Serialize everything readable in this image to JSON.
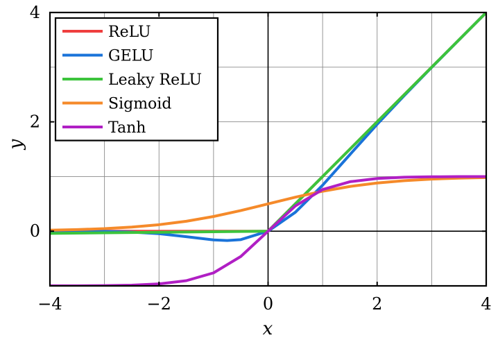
{
  "chart_data": {
    "type": "line",
    "title": "",
    "xlabel": "x",
    "ylabel": "y",
    "xlim": [
      -4,
      4
    ],
    "ylim": [
      -1,
      4
    ],
    "xticks": [
      -4,
      -2,
      0,
      2,
      4
    ],
    "yticks": [
      0,
      2,
      4
    ],
    "xtick_labels": [
      "−4",
      "−2",
      "0",
      "2",
      "4"
    ],
    "ytick_labels": [
      "0",
      "2",
      "4"
    ],
    "grid": true,
    "legend_position": "top-left",
    "series": [
      {
        "name": "ReLU",
        "color": "#ef3f3f",
        "x": [
          -4,
          -3.5,
          -3,
          -2.5,
          -2,
          -1.5,
          -1,
          -0.5,
          0,
          0.5,
          1,
          1.5,
          2,
          2.5,
          3,
          3.5,
          4
        ],
        "y": [
          0,
          0,
          0,
          0,
          0,
          0,
          0,
          0,
          0,
          0.5,
          1,
          1.5,
          2,
          2.5,
          3,
          3.5,
          4
        ]
      },
      {
        "name": "GELU",
        "color": "#1a73d9",
        "x": [
          -4,
          -3.5,
          -3,
          -2.5,
          -2,
          -1.5,
          -1,
          -0.75,
          -0.5,
          0,
          0.5,
          1,
          1.5,
          2,
          2.5,
          3,
          3.5,
          4
        ],
        "y": [
          0,
          -0.001,
          -0.004,
          -0.016,
          -0.045,
          -0.1,
          -0.159,
          -0.17,
          -0.154,
          0,
          0.346,
          0.841,
          1.4,
          1.955,
          2.484,
          2.996,
          3.499,
          4
        ]
      },
      {
        "name": "Leaky ReLU",
        "color": "#3cc43c",
        "x": [
          -4,
          -3,
          -2,
          -1,
          0,
          1,
          2,
          3,
          4
        ],
        "y": [
          -0.04,
          -0.03,
          -0.02,
          -0.01,
          0,
          1,
          2,
          3,
          4
        ]
      },
      {
        "name": "Sigmoid",
        "color": "#f58a2a",
        "x": [
          -4,
          -3.5,
          -3,
          -2.5,
          -2,
          -1.5,
          -1,
          -0.5,
          0,
          0.5,
          1,
          1.5,
          2,
          2.5,
          3,
          3.5,
          4
        ],
        "y": [
          0.018,
          0.029,
          0.047,
          0.076,
          0.119,
          0.182,
          0.269,
          0.378,
          0.5,
          0.622,
          0.731,
          0.818,
          0.881,
          0.924,
          0.953,
          0.971,
          0.982
        ]
      },
      {
        "name": "Tanh",
        "color": "#b01fc4",
        "x": [
          -4,
          -3.5,
          -3,
          -2.5,
          -2,
          -1.5,
          -1,
          -0.5,
          0,
          0.5,
          1,
          1.5,
          2,
          2.5,
          3,
          3.5,
          4
        ],
        "y": [
          -0.999,
          -0.998,
          -0.995,
          -0.987,
          -0.964,
          -0.905,
          -0.762,
          -0.462,
          0,
          0.462,
          0.762,
          0.905,
          0.964,
          0.987,
          0.995,
          0.998,
          0.999
        ]
      }
    ]
  }
}
